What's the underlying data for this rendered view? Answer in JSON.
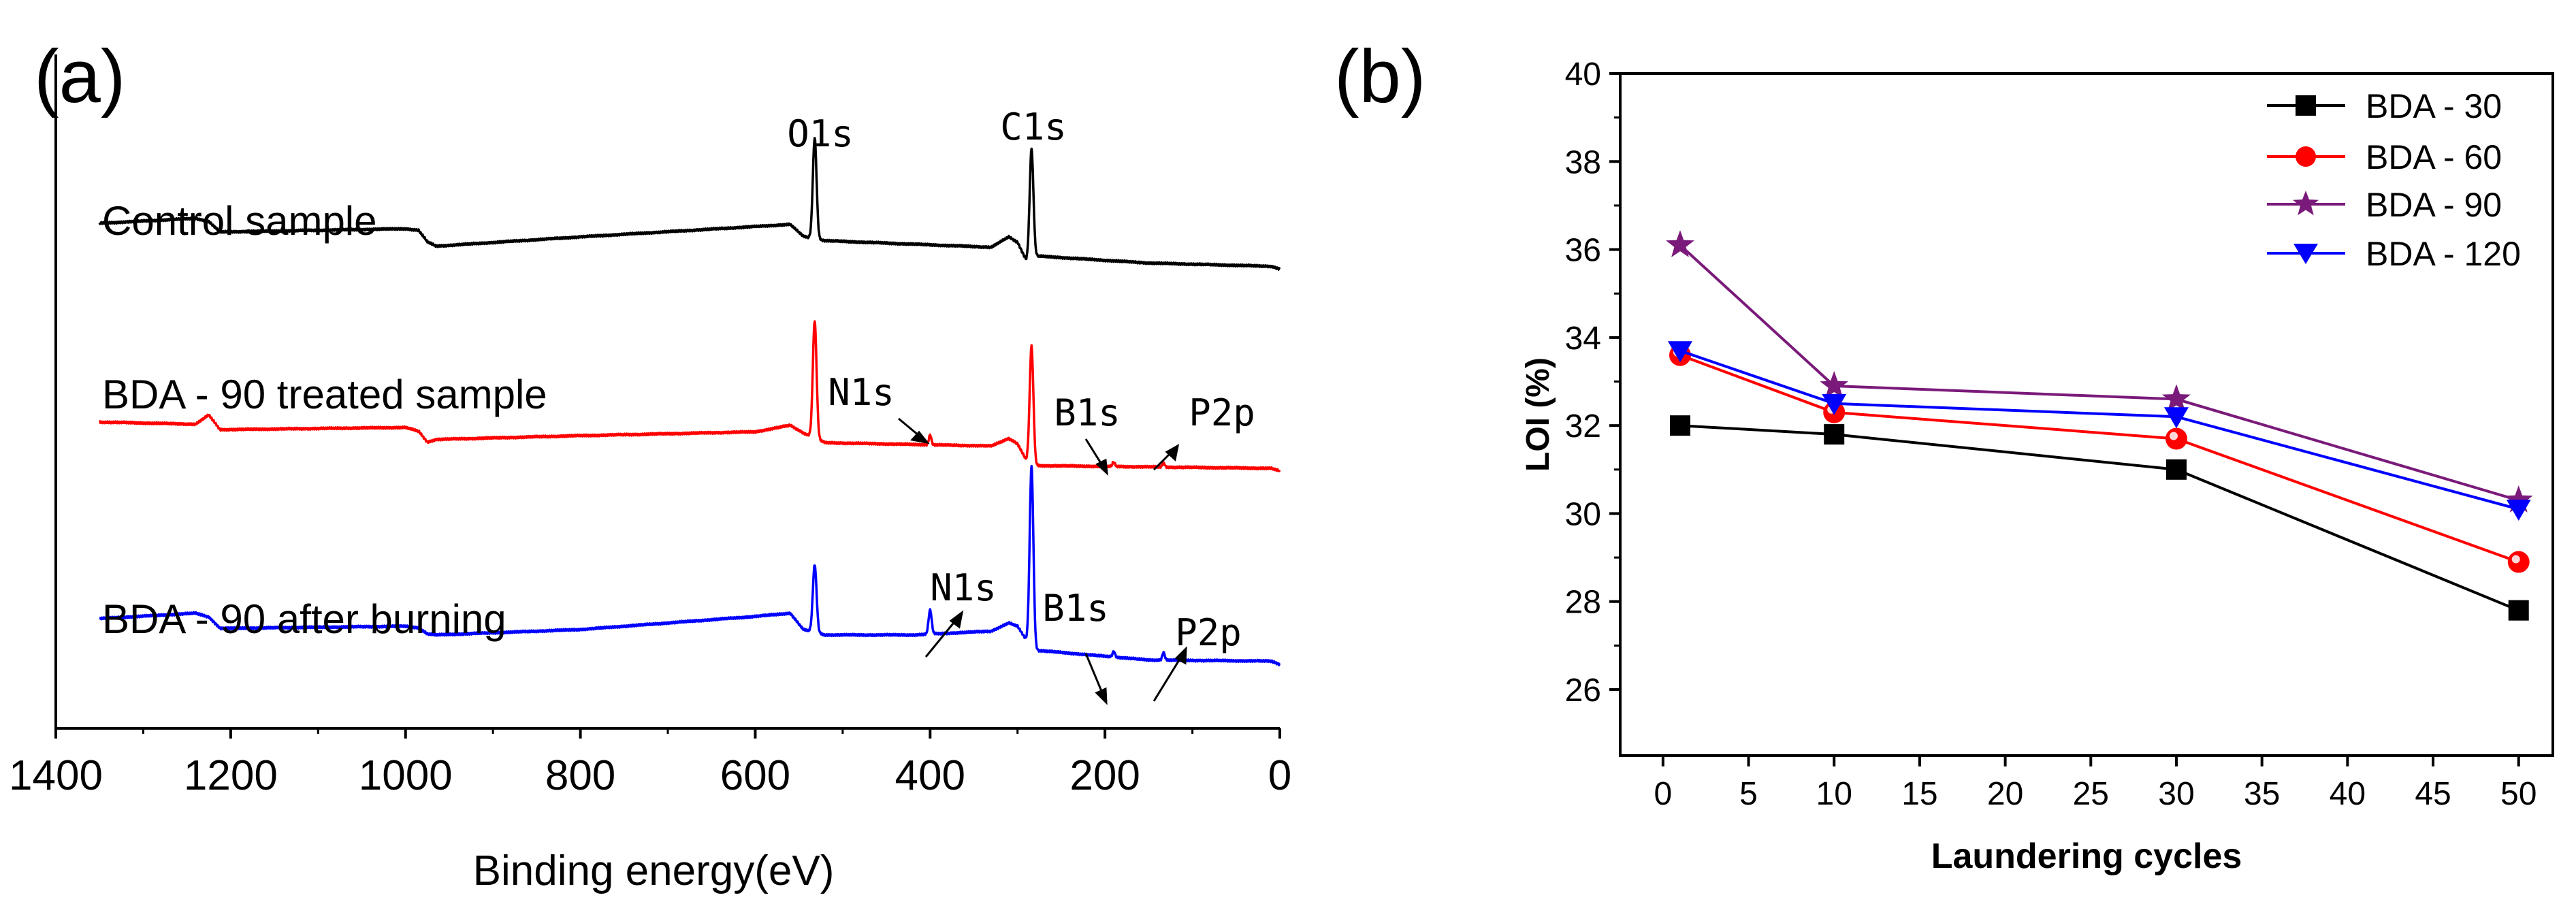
{
  "colors": {
    "black": "#000000",
    "red": "#ff0000",
    "purple": "#7a1a7a",
    "blue": "#0000ff"
  },
  "chart_data": [
    {
      "panel": "(a)",
      "type": "line",
      "xlabel": "Binding energy(eV)",
      "ylabel": "",
      "xlim": [
        1400,
        0
      ],
      "x_reversed": true,
      "xticks": [
        1400,
        1200,
        1000,
        800,
        600,
        400,
        200,
        0
      ],
      "grid": false,
      "series": [
        {
          "name": "Control sample",
          "color": "#000000",
          "offset": 2,
          "base": [
            [
              1350,
              0.4
            ],
            [
              1240,
              0.49
            ],
            [
              1225,
              0.43
            ],
            [
              1212,
              0.24
            ],
            [
              1000,
              0.3
            ],
            [
              985,
              0.27
            ],
            [
              975,
              0.06
            ],
            [
              965,
              -0.02
            ],
            [
              800,
              0.15
            ],
            [
              600,
              0.34
            ],
            [
              560,
              0.38
            ],
            [
              545,
              0.16
            ],
            [
              520,
              0.08
            ],
            [
              330,
              -0.04
            ],
            [
              310,
              0.15
            ],
            [
              300,
              0.05
            ],
            [
              290,
              -0.28
            ],
            [
              280,
              -0.2
            ],
            [
              150,
              -0.33
            ],
            [
              10,
              -0.39
            ],
            [
              0,
              -0.44
            ]
          ],
          "peaks": [
            [
              532,
              1.85,
              3
            ],
            [
              284,
              2.0,
              3
            ]
          ]
        },
        {
          "name": "BDA - 90 treated sample",
          "color": "#ff0000",
          "offset": 1,
          "base": [
            [
              1350,
              0.5
            ],
            [
              1240,
              0.46
            ],
            [
              1225,
              0.63
            ],
            [
              1212,
              0.36
            ],
            [
              1000,
              0.4
            ],
            [
              985,
              0.33
            ],
            [
              975,
              0.13
            ],
            [
              965,
              0.18
            ],
            [
              800,
              0.25
            ],
            [
              600,
              0.32
            ],
            [
              560,
              0.44
            ],
            [
              545,
              0.3
            ],
            [
              520,
              0.12
            ],
            [
              330,
              0.06
            ],
            [
              310,
              0.2
            ],
            [
              300,
              0.1
            ],
            [
              290,
              -0.2
            ],
            [
              280,
              -0.3
            ],
            [
              10,
              -0.35
            ],
            [
              0,
              -0.4
            ]
          ],
          "peaks": [
            [
              532,
              2.15,
              3
            ],
            [
              400,
              0.18,
              2
            ],
            [
              284,
              2.15,
              3
            ],
            [
              190,
              0.08,
              2
            ],
            [
              133,
              0.07,
              2
            ]
          ]
        },
        {
          "name": "BDA - 90 after burning",
          "color": "#0000ff",
          "offset": 0,
          "base": [
            [
              1350,
              0.64
            ],
            [
              1240,
              0.74
            ],
            [
              1225,
              0.67
            ],
            [
              1212,
              0.46
            ],
            [
              1000,
              0.5
            ],
            [
              985,
              0.47
            ],
            [
              975,
              0.36
            ],
            [
              965,
              0.34
            ],
            [
              800,
              0.44
            ],
            [
              600,
              0.68
            ],
            [
              560,
              0.74
            ],
            [
              545,
              0.44
            ],
            [
              520,
              0.34
            ],
            [
              420,
              0.34
            ],
            [
              330,
              0.41
            ],
            [
              310,
              0.56
            ],
            [
              300,
              0.5
            ],
            [
              290,
              0.25
            ],
            [
              280,
              0.06
            ],
            [
              150,
              -0.12
            ],
            [
              10,
              -0.14
            ],
            [
              0,
              -0.2
            ]
          ],
          "peaks": [
            [
              532,
              1.24,
              3
            ],
            [
              400,
              0.44,
              2.5
            ],
            [
              284,
              3.3,
              3
            ],
            [
              190,
              0.1,
              2
            ],
            [
              133,
              0.14,
              2
            ]
          ]
        }
      ],
      "annotations": [
        {
          "text": "O1s",
          "x": 532
        },
        {
          "text": "C1s",
          "x": 284
        },
        {
          "text": "N1s",
          "x": 400,
          "series": "BDA - 90 treated sample"
        },
        {
          "text": "B1s",
          "x": 190,
          "series": "BDA - 90 treated sample"
        },
        {
          "text": "P2p",
          "x": 133,
          "series": "BDA - 90 treated sample"
        },
        {
          "text": "N1s",
          "x": 400,
          "series": "BDA - 90 after burning"
        },
        {
          "text": "B1s",
          "x": 190,
          "series": "BDA - 90 after burning"
        },
        {
          "text": "P2p",
          "x": 133,
          "series": "BDA - 90 after burning"
        }
      ]
    },
    {
      "panel": "(b)",
      "type": "line",
      "xlabel": "Laundering cycles",
      "ylabel": "LOI (%)",
      "xlim": [
        -2.5,
        52
      ],
      "ylim": [
        24.5,
        40
      ],
      "xticks": [
        0,
        5,
        10,
        15,
        20,
        25,
        30,
        35,
        40,
        45,
        50
      ],
      "yticks": [
        26,
        28,
        30,
        32,
        34,
        36,
        38,
        40
      ],
      "x": [
        1,
        10,
        30,
        50
      ],
      "legend_position": "top-right",
      "grid": false,
      "series": [
        {
          "name": "BDA - 30",
          "color": "#000000",
          "marker": "square",
          "values": [
            32.0,
            31.8,
            31.0,
            27.8
          ]
        },
        {
          "name": "BDA - 60",
          "color": "#ff0000",
          "marker": "circle",
          "values": [
            33.6,
            32.3,
            31.7,
            28.9
          ]
        },
        {
          "name": "BDA - 90",
          "color": "#7a1a7a",
          "marker": "star",
          "values": [
            36.1,
            32.9,
            32.6,
            30.3
          ]
        },
        {
          "name": "BDA - 120",
          "color": "#0000ff",
          "marker": "triangle-down",
          "values": [
            33.7,
            32.5,
            32.2,
            30.1
          ]
        }
      ]
    }
  ]
}
